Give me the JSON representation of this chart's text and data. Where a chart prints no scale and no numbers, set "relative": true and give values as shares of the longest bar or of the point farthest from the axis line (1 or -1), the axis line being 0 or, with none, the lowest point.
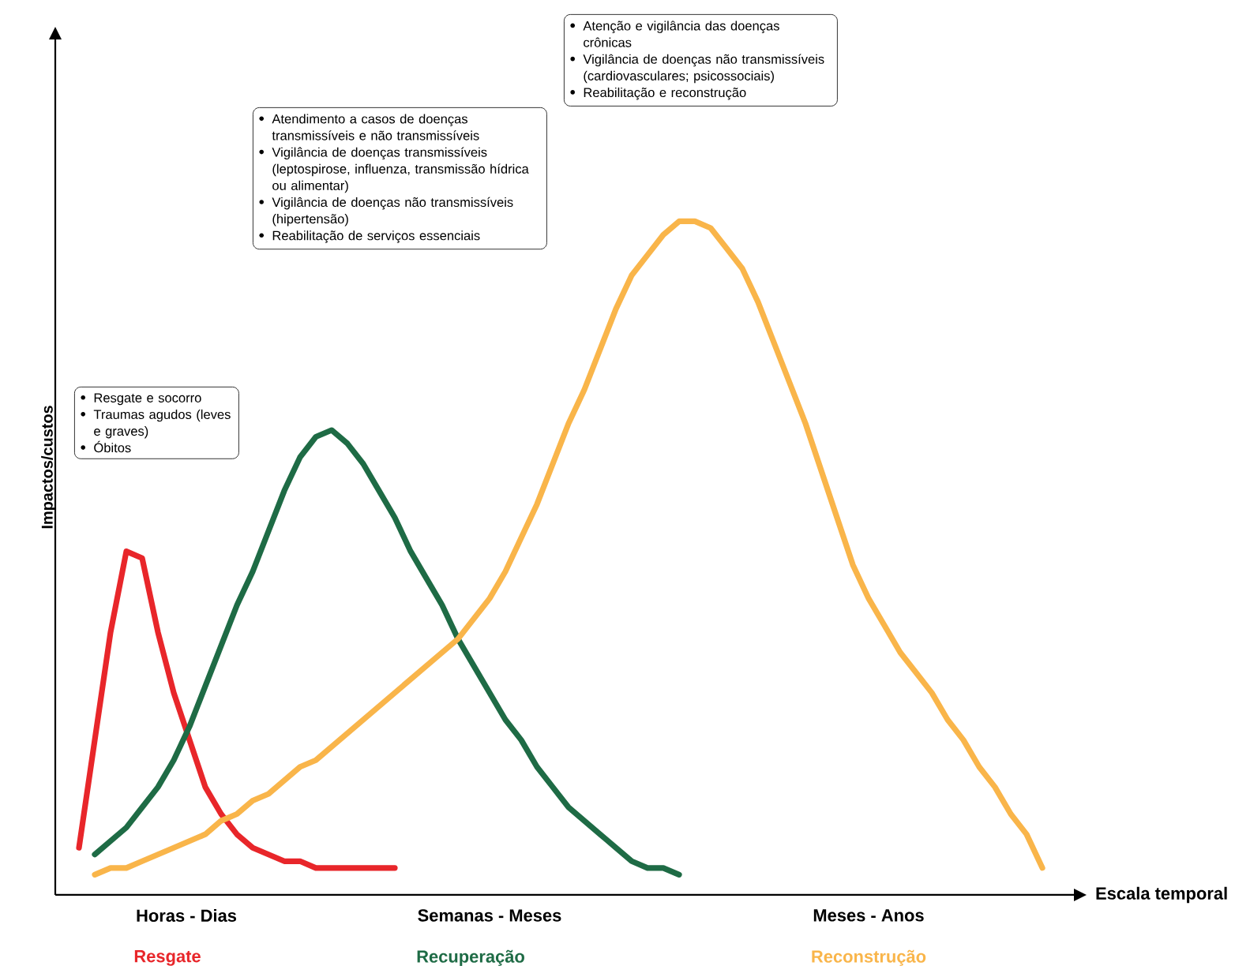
{
  "chart_data": {
    "type": "line",
    "relative": true,
    "xlabel": "Escala temporal",
    "ylabel": "Impactos/custos",
    "categories": [
      null,
      null,
      null,
      null,
      null,
      null,
      null,
      null,
      null,
      null,
      null,
      null,
      null,
      null,
      null,
      null,
      null,
      null,
      null,
      null,
      null,
      null,
      null,
      null,
      null,
      null,
      null,
      null,
      null,
      null,
      null,
      null,
      null,
      null,
      null,
      null,
      null,
      null,
      null,
      null,
      null,
      null,
      null,
      null,
      null,
      null,
      null,
      null,
      null,
      null,
      null,
      null,
      null,
      null,
      null,
      null,
      null,
      null,
      null,
      null,
      null,
      null,
      null,
      null
    ],
    "series": [
      {
        "name": "Resgate",
        "color": "#e8262a",
        "values": [
          null,
          0.07,
          0.23,
          0.39,
          0.51,
          0.5,
          0.39,
          0.3,
          0.23,
          0.16,
          0.12,
          0.09,
          0.07,
          0.06,
          0.05,
          0.05,
          0.04,
          0.04,
          0.04,
          0.04,
          0.04,
          0.04,
          null,
          null,
          null,
          null,
          null,
          null,
          null,
          null,
          null,
          null,
          null,
          null,
          null,
          null,
          null,
          null,
          null,
          null,
          null,
          null,
          null,
          null,
          null,
          null,
          null,
          null,
          null,
          null,
          null,
          null,
          null,
          null,
          null,
          null,
          null,
          null,
          null,
          null,
          null,
          null,
          null,
          null
        ]
      },
      {
        "name": "Recuperação",
        "color": "#1e6b45",
        "values": [
          null,
          null,
          0.06,
          0.08,
          0.1,
          0.13,
          0.16,
          0.2,
          0.25,
          0.31,
          0.37,
          0.43,
          0.48,
          0.54,
          0.6,
          0.65,
          0.68,
          0.69,
          0.67,
          0.64,
          0.6,
          0.56,
          0.51,
          0.47,
          0.43,
          0.38,
          0.34,
          0.3,
          0.26,
          0.23,
          0.19,
          0.16,
          0.13,
          0.11,
          0.09,
          0.07,
          0.05,
          0.04,
          0.04,
          0.03,
          null,
          null,
          null,
          null,
          null,
          null,
          null,
          null,
          null,
          null,
          null,
          null,
          null,
          null,
          null,
          null,
          null,
          null,
          null,
          null,
          null,
          null,
          null,
          null
        ]
      },
      {
        "name": "Reconstrução",
        "color": "#f9b54a",
        "values": [
          null,
          null,
          0.03,
          0.04,
          0.04,
          0.05,
          0.06,
          0.07,
          0.08,
          0.09,
          0.11,
          0.12,
          0.14,
          0.15,
          0.17,
          0.19,
          0.2,
          0.22,
          0.24,
          0.26,
          0.28,
          0.3,
          0.32,
          0.34,
          0.36,
          0.38,
          0.41,
          0.44,
          0.48,
          0.53,
          0.58,
          0.64,
          0.7,
          0.75,
          0.81,
          0.87,
          0.92,
          0.95,
          0.98,
          1.0,
          1.0,
          0.99,
          0.96,
          0.93,
          0.88,
          0.82,
          0.76,
          0.7,
          0.63,
          0.56,
          0.49,
          0.44,
          0.4,
          0.36,
          0.33,
          0.3,
          0.26,
          0.23,
          0.19,
          0.16,
          0.12,
          0.09,
          0.04,
          null
        ]
      }
    ],
    "annotations": [
      "Horas - Dias",
      "Semanas - Meses",
      "Meses - Anos",
      "Resgate e socorro",
      "Traumas agudos (leves e graves)",
      "Óbitos",
      "Atendimento a casos de doenças transmissíveis e não transmissíveis",
      "Vigilância de doenças transmissíveis (leptospirose, influenza, transmissão hídrica ou alimentar)",
      "Vigilância de doenças não transmissíveis (hipertensão)",
      "Reabilitação de serviços essenciais",
      "Atenção e vigilância das doenças crônicas",
      "Vigilância de doenças não transmissíveis (cardiovasculares; psicossociais)",
      "Reabilitação e reconstrução"
    ]
  }
}
